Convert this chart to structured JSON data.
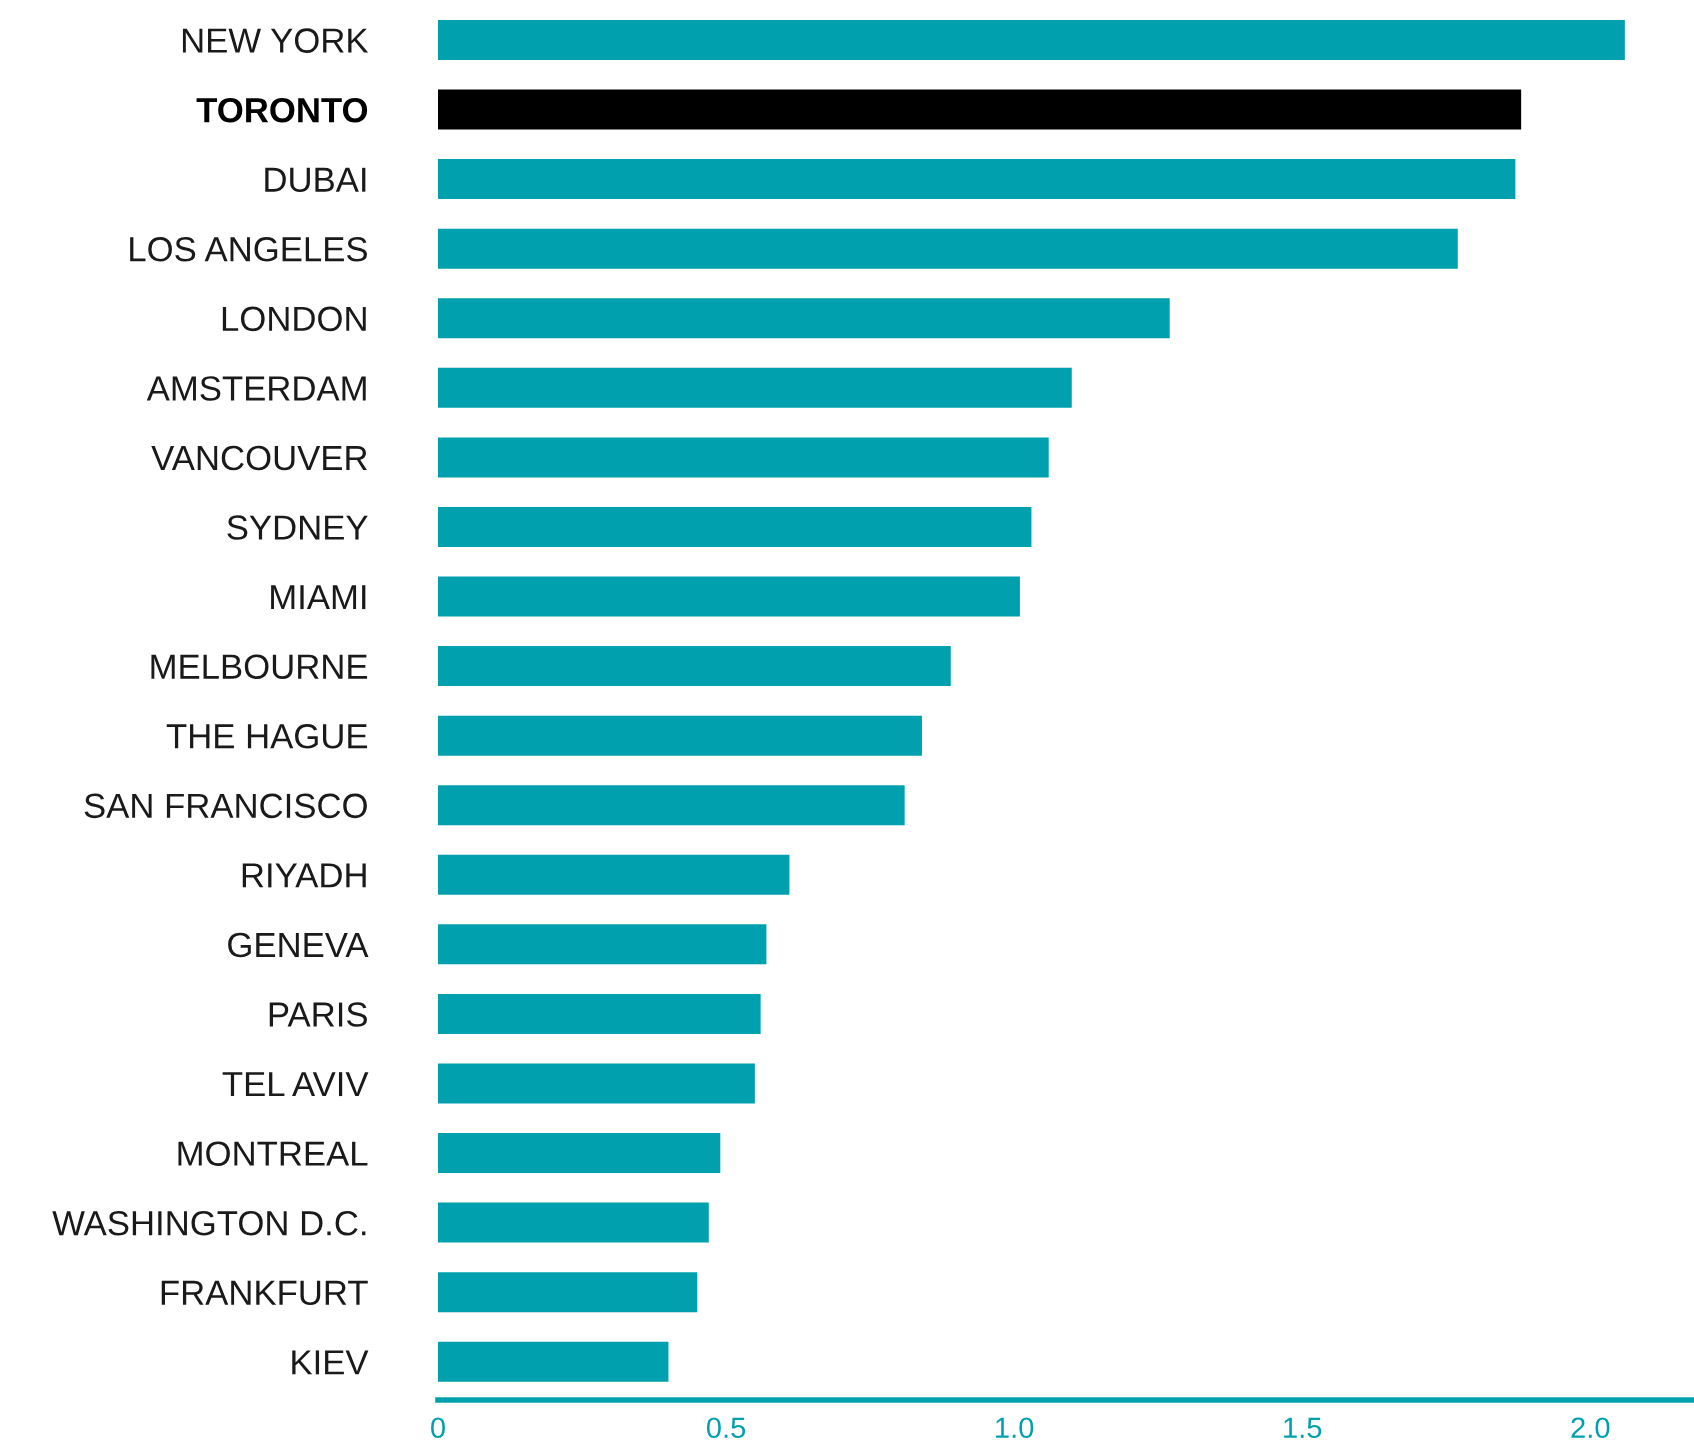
{
  "chart_data": {
    "type": "bar",
    "orientation": "horizontal",
    "categories": [
      "NEW YORK",
      "TORONTO",
      "DUBAI",
      "LOS ANGELES",
      "LONDON",
      "AMSTERDAM",
      "VANCOUVER",
      "SYDNEY",
      "MIAMI",
      "MELBOURNE",
      "THE HAGUE",
      "SAN FRANCISCO",
      "RIYADH",
      "GENEVA",
      "PARIS",
      "TEL AVIV",
      "MONTREAL",
      "WASHINGTON D.C.",
      "FRANKFURT",
      "KIEV"
    ],
    "values": [
      2.06,
      1.88,
      1.87,
      1.77,
      1.27,
      1.1,
      1.06,
      1.03,
      1.01,
      0.89,
      0.84,
      0.81,
      0.61,
      0.57,
      0.56,
      0.55,
      0.49,
      0.47,
      0.45,
      0.4
    ],
    "colors": [
      "#00a0ae",
      "#000000",
      "#00a0ae",
      "#00a0ae",
      "#00a0ae",
      "#00a0ae",
      "#00a0ae",
      "#00a0ae",
      "#00a0ae",
      "#00a0ae",
      "#00a0ae",
      "#00a0ae",
      "#00a0ae",
      "#00a0ae",
      "#00a0ae",
      "#00a0ae",
      "#00a0ae",
      "#00a0ae",
      "#00a0ae",
      "#00a0ae"
    ],
    "xlim": [
      0,
      2.18
    ],
    "xticks": [
      0,
      0.5,
      {
        "value": 1,
        "label": "1.0"
      },
      1.5,
      {
        "value": 2,
        "label": "2.0"
      }
    ],
    "grid": false,
    "legend": false
  }
}
